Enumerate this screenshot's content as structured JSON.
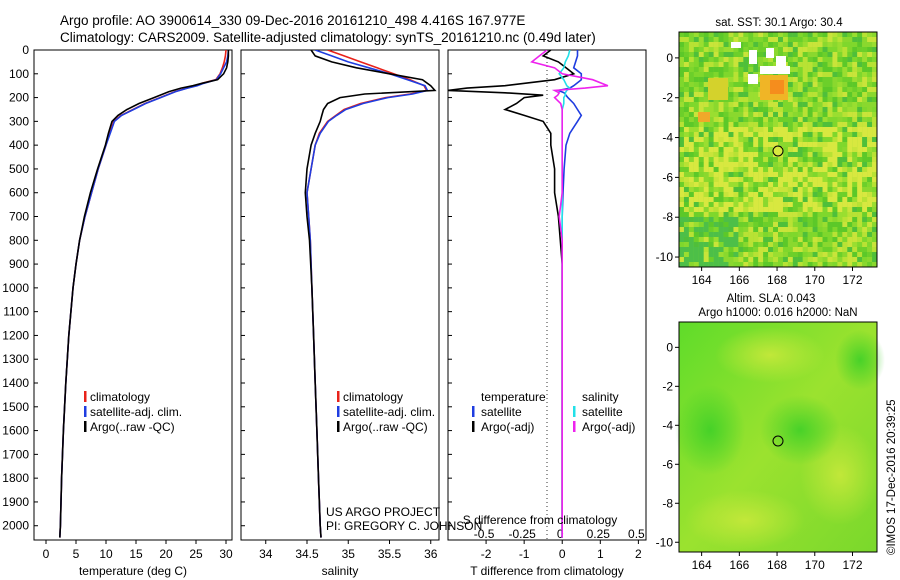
{
  "header": {
    "line1": "Argo profile: AO 3900614_330 09-Dec-2016 20161210_498 4.416S 167.977E",
    "line2": "Climatology: CARS2009. Satellite-adjusted climatology: synTS_20161210.nc (0.49d later)"
  },
  "credit": {
    "line1": "US ARGO PROJECT",
    "line2": "PI: GREGORY C. JOHNSON"
  },
  "timestamp": "©IMOS 17-Dec-2016 20:39:25",
  "depth_ticks": [
    0,
    100,
    200,
    300,
    400,
    500,
    600,
    700,
    800,
    900,
    1000,
    1100,
    1200,
    1300,
    1400,
    1500,
    1600,
    1700,
    1800,
    1900,
    2000
  ],
  "legends": {
    "temperature": [
      "climatology",
      "satellite-adj. clim.",
      "Argo(..raw -QC)"
    ],
    "salinity": [
      "climatology",
      "satellite-adj. clim.",
      "Argo(..raw -QC)"
    ],
    "diff_temp_title": "temperature",
    "diff_temp": [
      "satellite",
      "Argo(-adj)"
    ],
    "diff_sal_title": "salinity",
    "diff_sal": [
      "satellite",
      "Argo(-adj)"
    ]
  },
  "colors": {
    "climatology": "#e8221a",
    "satellite": "#1f3de0",
    "argo": "#000000",
    "sal_satellite": "#22e0e8",
    "sal_argo": "#ee22ee"
  },
  "map_titles": {
    "sst": "sat. SST: 30.1  Argo: 30.4",
    "sla_line1": "Altim. SLA: 0.043",
    "sla_line2": "Argo h1000: 0.016  h2000: NaN"
  },
  "chart_data": [
    {
      "type": "line",
      "name": "temperature",
      "xlabel": "temperature (deg C)",
      "ylabel": "",
      "xlim": [
        -2,
        31
      ],
      "ylim": [
        2060,
        0
      ],
      "xticks": [
        0,
        5,
        10,
        15,
        20,
        25,
        30
      ],
      "depth": [
        0,
        25,
        50,
        75,
        100,
        125,
        140,
        150,
        160,
        175,
        200,
        225,
        250,
        275,
        300,
        350,
        400,
        500,
        600,
        700,
        800,
        900,
        1000,
        1200,
        1400,
        1600,
        1800,
        2000,
        2050
      ],
      "series": [
        {
          "name": "climatology",
          "color_key": "climatology",
          "values": [
            30.0,
            29.9,
            29.7,
            29.4,
            29.0,
            28.3,
            26.0,
            25.0,
            23.5,
            21.5,
            19.0,
            16.5,
            14.5,
            12.5,
            11.3,
            10.6,
            10.0,
            8.7,
            7.6,
            6.5,
            5.6,
            5.0,
            4.5,
            3.8,
            3.3,
            2.9,
            2.6,
            2.4,
            2.3
          ]
        },
        {
          "name": "satellite-adj. clim.",
          "color_key": "satellite",
          "values": [
            30.4,
            30.3,
            30.1,
            29.6,
            29.1,
            28.4,
            26.3,
            25.2,
            23.6,
            21.6,
            19.1,
            16.6,
            14.6,
            12.6,
            11.4,
            10.7,
            10.0,
            8.7,
            7.6,
            6.5,
            5.6,
            5.0,
            4.5,
            3.8,
            3.3,
            2.9,
            2.6,
            2.4,
            2.3
          ]
        },
        {
          "name": "Argo(..raw -QC)",
          "color_key": "argo",
          "values": [
            30.4,
            30.4,
            30.3,
            30.1,
            29.6,
            28.6,
            26.0,
            24.5,
            22.5,
            20.5,
            18.0,
            15.5,
            13.5,
            12.0,
            11.0,
            10.4,
            9.9,
            8.6,
            7.4,
            6.4,
            5.6,
            5.0,
            4.5,
            3.8,
            3.3,
            2.9,
            2.6,
            2.4,
            2.3
          ]
        }
      ]
    },
    {
      "type": "line",
      "name": "salinity",
      "xlabel": "salinity",
      "xlim": [
        33.7,
        36.1
      ],
      "ylim": [
        2060,
        0
      ],
      "xticks": [
        34,
        34.5,
        35,
        35.5,
        36
      ],
      "depth": [
        0,
        25,
        50,
        75,
        100,
        125,
        150,
        170,
        185,
        200,
        225,
        250,
        275,
        300,
        350,
        400,
        500,
        600,
        700,
        800,
        1000,
        1200,
        1400,
        1600,
        1800,
        2000,
        2050
      ],
      "series": [
        {
          "name": "climatology",
          "color_key": "climatology",
          "values": [
            34.75,
            34.95,
            35.15,
            35.35,
            35.55,
            35.75,
            35.92,
            35.95,
            35.75,
            35.45,
            35.15,
            34.95,
            34.85,
            34.75,
            34.65,
            34.6,
            34.55,
            34.5,
            34.52,
            34.54,
            34.56,
            34.58,
            34.6,
            34.62,
            34.64,
            34.66,
            34.67
          ]
        },
        {
          "name": "satellite-adj. clim.",
          "color_key": "satellite",
          "values": [
            34.6,
            34.8,
            35.0,
            35.25,
            35.5,
            35.72,
            35.93,
            35.96,
            35.78,
            35.48,
            35.18,
            34.97,
            34.86,
            34.76,
            34.66,
            34.6,
            34.55,
            34.5,
            34.52,
            34.54,
            34.56,
            34.58,
            34.6,
            34.62,
            34.64,
            34.66,
            34.67
          ]
        },
        {
          "name": "Argo(..raw -QC)",
          "color_key": "argo",
          "values": [
            34.55,
            34.6,
            34.8,
            35.1,
            35.5,
            35.9,
            36.0,
            36.05,
            35.2,
            34.9,
            34.75,
            34.7,
            34.68,
            34.66,
            34.6,
            34.55,
            34.5,
            34.48,
            34.5,
            34.53,
            34.56,
            34.58,
            34.6,
            34.62,
            34.64,
            34.66,
            34.67
          ]
        }
      ]
    },
    {
      "type": "line",
      "name": "difference",
      "xlabel": "T difference from climatology",
      "x2label": "S difference from climatology",
      "xlim": [
        -3.0,
        2.2
      ],
      "ylim": [
        2060,
        0
      ],
      "xticks": [
        -2,
        -1,
        0,
        1,
        2
      ],
      "x2ticks": [
        -0.5,
        -0.25,
        0,
        0.25,
        0.5
      ],
      "x2tick_labels": [
        "-0.5",
        "-0.25",
        "0",
        "0.25",
        "0.5"
      ],
      "depth": [
        0,
        25,
        50,
        75,
        100,
        125,
        150,
        160,
        170,
        180,
        190,
        200,
        225,
        250,
        275,
        300,
        350,
        400,
        500,
        600,
        700,
        800,
        900,
        1000,
        1200,
        1400,
        1600,
        1800,
        2000,
        2050
      ],
      "series": [
        {
          "name": "T satellite",
          "color_key": "satellite",
          "values": [
            0.4,
            0.4,
            0.35,
            0.3,
            0.5,
            0.5,
            0.3,
            0.2,
            -0.1,
            0.05,
            0.1,
            0.15,
            0.3,
            0.4,
            0.5,
            0.4,
            0.2,
            0.1,
            0.05,
            0.02,
            0.0,
            0.0,
            0.0,
            0.0,
            0.0,
            0.0,
            0.0,
            0.0,
            0.0,
            0.0
          ]
        },
        {
          "name": "T Argo(-adj)",
          "color_key": "argo",
          "values": [
            -0.3,
            -0.5,
            -0.1,
            0.1,
            0.3,
            -0.2,
            -1.5,
            -2.5,
            -3.0,
            -1.5,
            -0.5,
            -1.0,
            -1.2,
            -1.5,
            -1.0,
            -0.5,
            -0.3,
            -0.3,
            -0.2,
            -0.2,
            -0.1,
            -0.05,
            0.0,
            0.0,
            0.0,
            0.0,
            0.0,
            0.0,
            0.0,
            0.0
          ]
        },
        {
          "name": "S satellite",
          "color_key": "sal_satellite",
          "values": [
            0.05,
            0.04,
            0.02,
            0.01,
            -0.02,
            0.01,
            0.03,
            0.05,
            0.03,
            0.02,
            0.02,
            0.01,
            0.01,
            0.0,
            0.0,
            0.0,
            0.0,
            0.0,
            0.0,
            0.0,
            0.0,
            0.0,
            0.0,
            0.0,
            0.0,
            0.0,
            0.0,
            0.0,
            0.0,
            0.0
          ]
        },
        {
          "name": "S Argo(-adj)",
          "color_key": "sal_argo",
          "values": [
            -0.1,
            -0.15,
            -0.2,
            -0.05,
            0.0,
            0.2,
            0.3,
            0.15,
            -0.05,
            -0.02,
            -0.03,
            -0.05,
            -0.01,
            0.0,
            0.0,
            0.0,
            0.0,
            0.0,
            0.0,
            0.0,
            -0.02,
            0.0,
            0.0,
            0.0,
            0.0,
            0.0,
            0.0,
            0.0,
            0.0,
            0.0
          ]
        }
      ]
    },
    {
      "type": "heatmap",
      "name": "sst-map",
      "xticks": [
        164,
        166,
        168,
        170,
        172
      ],
      "yticks": [
        0,
        -2,
        -4,
        -6,
        -8,
        -10
      ],
      "xlim": [
        162.8,
        173.3
      ],
      "ylim": [
        -10.5,
        1.3
      ],
      "argo_position": {
        "lon": 167.977,
        "lat": -4.416
      }
    },
    {
      "type": "heatmap",
      "name": "sla-map",
      "xticks": [
        164,
        166,
        168,
        170,
        172
      ],
      "yticks": [
        0,
        -2,
        -4,
        -6,
        -8,
        -10
      ],
      "xlim": [
        162.8,
        173.3
      ],
      "ylim": [
        -10.5,
        1.3
      ],
      "argo_position": {
        "lon": 167.977,
        "lat": -4.416
      }
    }
  ]
}
